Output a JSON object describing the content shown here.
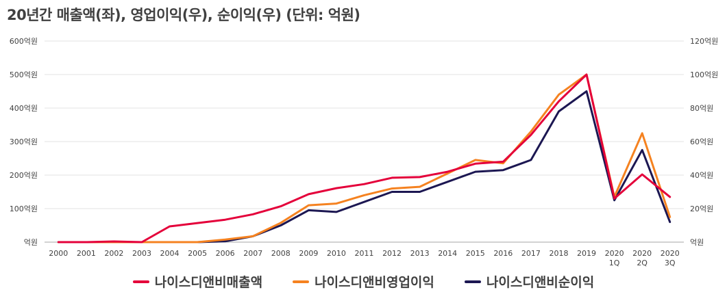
{
  "chart_data": {
    "type": "line",
    "title": "20년간 매출액(좌), 영업이익(우), 순이익(우) (단위: 억원)",
    "categories": [
      "2000",
      "2001",
      "2002",
      "2003",
      "2004",
      "2005",
      "2006",
      "2007",
      "2008",
      "2009",
      "2010",
      "2011",
      "2012",
      "2013",
      "2014",
      "2015",
      "2016",
      "2017",
      "2018",
      "2019",
      "2020\n1Q",
      "2020\n2Q",
      "2020\n3Q"
    ],
    "y_left": {
      "ticks": [
        "억원",
        "100억원",
        "200억원",
        "300억원",
        "400억원",
        "500억원",
        "600억원"
      ],
      "ylim": [
        0,
        600
      ]
    },
    "y_right": {
      "ticks": [
        "억원",
        "20억원",
        "40억원",
        "60억원",
        "80억원",
        "100억원",
        "120억원"
      ],
      "ylim": [
        0,
        120
      ]
    },
    "grid": "horizontal",
    "legend_position": "bottom",
    "series": [
      {
        "name": "나이스디앤비매출액",
        "axis": "left",
        "color": "#e4003a",
        "values": [
          0,
          0,
          2,
          0,
          47,
          57,
          67,
          83,
          107,
          143,
          161,
          173,
          192,
          194,
          210,
          234,
          240,
          320,
          420,
          500,
          130,
          202,
          135
        ]
      },
      {
        "name": "나이스디앤비영업이익",
        "axis": "right",
        "color": "#f58220",
        "values": [
          0,
          0,
          0,
          0,
          0,
          0,
          1.5,
          3.5,
          11.5,
          22,
          23,
          28,
          32,
          33,
          41,
          49,
          47,
          66,
          88,
          100,
          27,
          65,
          15
        ]
      },
      {
        "name": "나이스디앤비순이익",
        "axis": "right",
        "color": "#1c1752",
        "values": [
          0,
          0,
          0,
          0,
          0,
          0,
          0.5,
          3.5,
          10,
          19,
          18,
          24,
          30,
          30,
          36,
          42,
          43,
          49,
          78,
          90,
          25,
          55,
          12
        ]
      }
    ]
  }
}
